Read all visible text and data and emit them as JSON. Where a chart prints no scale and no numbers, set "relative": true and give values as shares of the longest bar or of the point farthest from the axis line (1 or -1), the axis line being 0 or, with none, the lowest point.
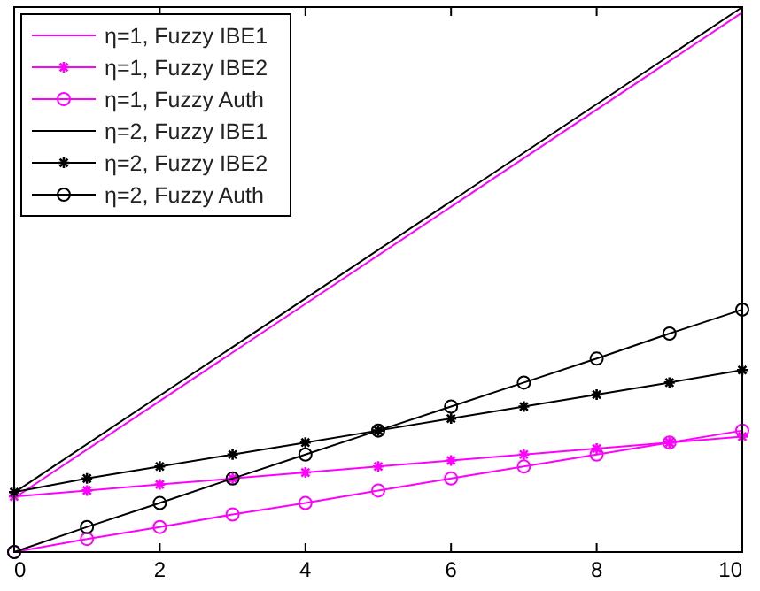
{
  "chart_data": {
    "type": "line",
    "relative": true,
    "xlim": [
      0,
      10
    ],
    "xticks": [
      0,
      2,
      4,
      6,
      8,
      10
    ],
    "legend": "top left",
    "grid": false,
    "series": [
      {
        "name": "η=1, Fuzzy IBE1",
        "color": "#ff00ff",
        "x": [
          0,
          10
        ],
        "values": [
          0.099,
          0.99
        ]
      },
      {
        "name": "η=1, Fuzzy IBE2",
        "color": "#ff00ff",
        "marker": "cross",
        "x": [
          0,
          1,
          2,
          3,
          4,
          5,
          6,
          7,
          8,
          9,
          10
        ],
        "values": [
          0.102,
          0.113,
          0.124,
          0.135,
          0.146,
          0.157,
          0.168,
          0.179,
          0.19,
          0.201,
          0.212
        ]
      },
      {
        "name": "η=1, Fuzzy Auth",
        "color": "#ff00ff",
        "marker": "circle",
        "x": [
          0,
          1,
          2,
          3,
          4,
          5,
          6,
          7,
          8,
          9,
          10
        ],
        "values": [
          0,
          0.024,
          0.046,
          0.069,
          0.09,
          0.113,
          0.135,
          0.157,
          0.179,
          0.201,
          0.223
        ]
      },
      {
        "name": "η=2, Fuzzy IBE1",
        "color": "#000000",
        "x": [
          0,
          10
        ],
        "values": [
          0.109,
          1
        ]
      },
      {
        "name": "η=2, Fuzzy IBE2",
        "color": "#000000",
        "marker": "cross",
        "x": [
          0,
          1,
          2,
          3,
          4,
          5,
          6,
          7,
          8,
          9,
          10
        ],
        "values": [
          0.11,
          0.135,
          0.157,
          0.179,
          0.201,
          0.223,
          0.245,
          0.267,
          0.289,
          0.311,
          0.334
        ]
      },
      {
        "name": "η=2, Fuzzy Auth",
        "color": "#000000",
        "marker": "circle",
        "x": [
          0,
          1,
          2,
          3,
          4,
          5,
          6,
          7,
          8,
          9,
          10
        ],
        "values": [
          0,
          0.046,
          0.09,
          0.135,
          0.179,
          0.223,
          0.267,
          0.311,
          0.355,
          0.401,
          0.445
        ]
      }
    ]
  }
}
